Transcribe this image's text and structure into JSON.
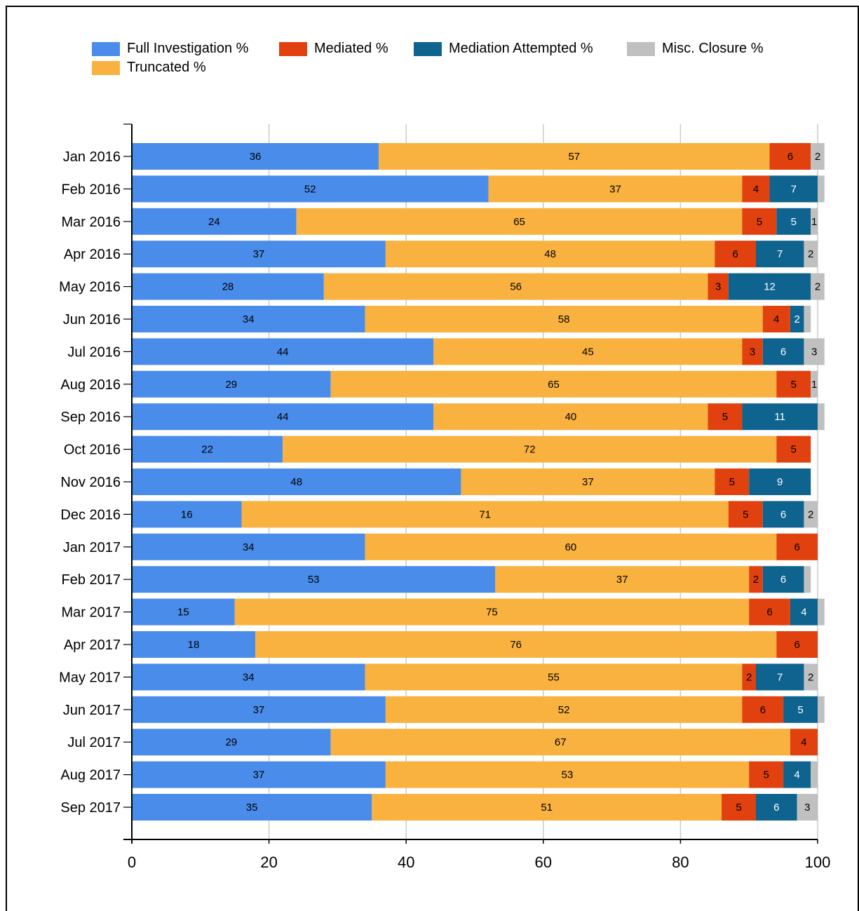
{
  "chart_data": {
    "type": "bar",
    "orientation": "horizontal",
    "stacked": true,
    "title": "",
    "xlabel": "",
    "ylabel": "",
    "xlim": [
      0,
      100
    ],
    "x_ticks": [
      "0",
      "20",
      "40",
      "60",
      "80",
      "100"
    ],
    "grid": true,
    "legend_position": "top",
    "categories": [
      "Jan 2016",
      "Feb 2016",
      "Mar 2016",
      "Apr 2016",
      "May 2016",
      "Jun 2016",
      "Jul 2016",
      "Aug 2016",
      "Sep 2016",
      "Oct 2016",
      "Nov 2016",
      "Dec 2016",
      "Jan 2017",
      "Feb 2017",
      "Mar 2017",
      "Apr 2017",
      "May 2017",
      "Jun 2017",
      "Jul 2017",
      "Aug 2017",
      "Sep 2017"
    ],
    "series": [
      {
        "name": "Full Investigation %",
        "color": "#4a8cea",
        "values": [
          36,
          52,
          24,
          37,
          28,
          34,
          44,
          29,
          44,
          22,
          48,
          16,
          34,
          53,
          15,
          18,
          34,
          37,
          29,
          37,
          35
        ]
      },
      {
        "name": "Truncated %",
        "color": "#f9b240",
        "values": [
          57,
          37,
          65,
          48,
          56,
          58,
          45,
          65,
          40,
          72,
          37,
          71,
          60,
          37,
          75,
          76,
          55,
          52,
          67,
          53,
          51
        ]
      },
      {
        "name": "Mediated %",
        "color": "#e0410e",
        "values": [
          6,
          4,
          5,
          6,
          3,
          4,
          3,
          5,
          5,
          5,
          5,
          5,
          6,
          2,
          6,
          6,
          2,
          6,
          4,
          5,
          5
        ]
      },
      {
        "name": "Mediation Attempted %",
        "color": "#0f638f",
        "values": [
          0,
          7,
          5,
          7,
          12,
          2,
          6,
          0,
          11,
          0,
          9,
          6,
          0,
          6,
          4,
          0,
          7,
          5,
          0,
          4,
          6
        ]
      },
      {
        "name": "Misc. Closure %",
        "color": "#c0c0c0",
        "values": [
          2,
          1,
          1,
          2,
          2,
          1,
          3,
          1,
          1,
          0,
          0,
          2,
          0,
          1,
          1,
          0,
          2,
          1,
          0,
          1,
          3
        ]
      }
    ],
    "labels": [
      [
        "36",
        "57",
        "6",
        "",
        "2"
      ],
      [
        "52",
        "37",
        "4",
        "7",
        ""
      ],
      [
        "24",
        "65",
        "5",
        "5",
        "1"
      ],
      [
        "37",
        "48",
        "6",
        "7",
        "2"
      ],
      [
        "28",
        "56",
        "3",
        "12",
        "2"
      ],
      [
        "34",
        "58",
        "4",
        "2",
        ""
      ],
      [
        "44",
        "45",
        "3",
        "6",
        "3"
      ],
      [
        "29",
        "65",
        "5",
        "",
        "1"
      ],
      [
        "44",
        "40",
        "5",
        "11",
        ""
      ],
      [
        "22",
        "72",
        "5",
        "",
        ""
      ],
      [
        "48",
        "37",
        "5",
        "9",
        ""
      ],
      [
        "16",
        "71",
        "5",
        "6",
        "2"
      ],
      [
        "34",
        "60",
        "6",
        "",
        ""
      ],
      [
        "53",
        "37",
        "2",
        "6",
        ""
      ],
      [
        "15",
        "75",
        "6",
        "4",
        ""
      ],
      [
        "18",
        "76",
        "6",
        "",
        ""
      ],
      [
        "34",
        "55",
        "2",
        "7",
        "2"
      ],
      [
        "37",
        "52",
        "6",
        "5",
        ""
      ],
      [
        "29",
        "67",
        "4",
        "",
        ""
      ],
      [
        "37",
        "53",
        "5",
        "4",
        ""
      ],
      [
        "35",
        "51",
        "5",
        "6",
        "3"
      ]
    ]
  }
}
